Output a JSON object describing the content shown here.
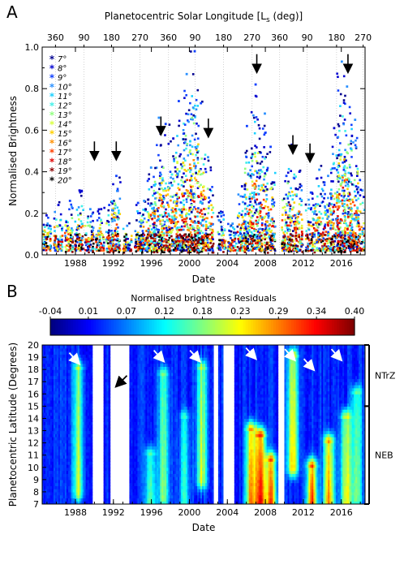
{
  "chart_data": [
    {
      "panel": "A",
      "type": "scatter",
      "xlabel": "Date",
      "ylabel": "Normalised Brightness",
      "top_axis_label": "Planetocentric Solar Longitude [L",
      "top_axis_label_sub": "s",
      "top_axis_label_end": " (deg)]",
      "xlim": [
        1984.5,
        2018.5
      ],
      "ylim": [
        0,
        1.0
      ],
      "x_ticks": [
        1988,
        1992,
        1996,
        2000,
        2004,
        2008,
        2012,
        2016
      ],
      "y_ticks": [
        0.0,
        0.2,
        0.4,
        0.6,
        0.8,
        1.0
      ],
      "top_ticks": [
        {
          "year": 1985.9,
          "label": "360"
        },
        {
          "year": 1988.9,
          "label": "90"
        },
        {
          "year": 1991.8,
          "label": "180"
        },
        {
          "year": 1994.8,
          "label": "270"
        },
        {
          "year": 1997.8,
          "label": "360"
        },
        {
          "year": 2000.6,
          "label": "90"
        },
        {
          "year": 2003.6,
          "label": "180"
        },
        {
          "year": 2006.6,
          "label": "270"
        },
        {
          "year": 2009.5,
          "label": "360"
        },
        {
          "year": 2012.4,
          "label": "90"
        },
        {
          "year": 2015.5,
          "label": "180"
        },
        {
          "year": 2018.3,
          "label": "270"
        }
      ],
      "legend": {
        "position": "top-left",
        "entries": [
          {
            "label": "7°",
            "color": "#00008f"
          },
          {
            "label": "8°",
            "color": "#0000d0"
          },
          {
            "label": "9°",
            "color": "#1040ff"
          },
          {
            "label": "10°",
            "color": "#2a90ff"
          },
          {
            "label": "11°",
            "color": "#1ad0ff"
          },
          {
            "label": "12°",
            "color": "#40f0e8"
          },
          {
            "label": "13°",
            "color": "#90ff80"
          },
          {
            "label": "14°",
            "color": "#d8ff40"
          },
          {
            "label": "15°",
            "color": "#ffd000"
          },
          {
            "label": "16°",
            "color": "#ff9000"
          },
          {
            "label": "17°",
            "color": "#ff4000"
          },
          {
            "label": "18°",
            "color": "#e00000"
          },
          {
            "label": "19°",
            "color": "#8a0000"
          },
          {
            "label": "20°",
            "color": "#000000"
          }
        ]
      },
      "event_arrows": [
        {
          "year": 1990.0,
          "brightness": 0.46
        },
        {
          "year": 1992.3,
          "brightness": 0.46
        },
        {
          "year": 1997.0,
          "brightness": 0.58
        },
        {
          "year": 2002.0,
          "brightness": 0.57
        },
        {
          "year": 2007.1,
          "brightness": 0.88
        },
        {
          "year": 2010.9,
          "brightness": 0.49
        },
        {
          "year": 2012.7,
          "brightness": 0.45
        },
        {
          "year": 2016.7,
          "brightness": 0.88
        }
      ],
      "observing_clusters": [
        {
          "year": 1985.0,
          "peak": 0.19
        },
        {
          "year": 1986.2,
          "peak": 0.24
        },
        {
          "year": 1987.3,
          "peak": 0.26
        },
        {
          "year": 1988.4,
          "peak": 0.31
        },
        {
          "year": 1989.5,
          "peak": 0.22
        },
        {
          "year": 1990.6,
          "peak": 0.22
        },
        {
          "year": 1991.7,
          "peak": 0.24
        },
        {
          "year": 1992.3,
          "peak": 0.38
        },
        {
          "year": 1993.5,
          "peak": 0.14
        },
        {
          "year": 1994.7,
          "peak": 0.25
        },
        {
          "year": 1995.3,
          "peak": 0.26
        },
        {
          "year": 1996.0,
          "peak": 0.42
        },
        {
          "year": 1996.7,
          "peak": 0.66
        },
        {
          "year": 1997.5,
          "peak": 0.63
        },
        {
          "year": 1998.3,
          "peak": 0.56
        },
        {
          "year": 1999.0,
          "peak": 0.74
        },
        {
          "year": 1999.8,
          "peak": 0.87
        },
        {
          "year": 2000.5,
          "peak": 0.98
        },
        {
          "year": 2001.3,
          "peak": 0.73
        },
        {
          "year": 2002.1,
          "peak": 0.47
        },
        {
          "year": 2003.4,
          "peak": 0.2
        },
        {
          "year": 2004.5,
          "peak": 0.15
        },
        {
          "year": 2005.5,
          "peak": 0.33
        },
        {
          "year": 2006.2,
          "peak": 0.62
        },
        {
          "year": 2007.0,
          "peak": 0.82
        },
        {
          "year": 2007.8,
          "peak": 0.68
        },
        {
          "year": 2008.6,
          "peak": 0.52
        },
        {
          "year": 2010.2,
          "peak": 0.38
        },
        {
          "year": 2010.8,
          "peak": 0.53
        },
        {
          "year": 2011.5,
          "peak": 0.4
        },
        {
          "year": 2012.7,
          "peak": 0.3
        },
        {
          "year": 2013.6,
          "peak": 0.41
        },
        {
          "year": 2014.5,
          "peak": 0.38
        },
        {
          "year": 2015.3,
          "peak": 0.61
        },
        {
          "year": 2016.0,
          "peak": 0.93
        },
        {
          "year": 2016.7,
          "peak": 0.81
        },
        {
          "year": 2017.4,
          "peak": 0.65
        },
        {
          "year": 2018.0,
          "peak": 0.36
        }
      ]
    },
    {
      "panel": "B",
      "type": "heatmap",
      "title": "Normalised brightness Residuals",
      "xlabel": "Date",
      "ylabel": "Planetocentric Latitude (Degrees)",
      "xlim": [
        1984.5,
        2018.5
      ],
      "ylim": [
        7,
        20
      ],
      "x_ticks": [
        1988,
        1992,
        1996,
        2000,
        2004,
        2008,
        2012,
        2016
      ],
      "y_ticks": [
        7,
        8,
        9,
        10,
        11,
        12,
        13,
        14,
        15,
        16,
        17,
        18,
        19,
        20
      ],
      "colorbar_ticks": [
        "-0.04",
        "0.01",
        "0.07",
        "0.12",
        "0.18",
        "0.23",
        "0.29",
        "0.34",
        "0.40"
      ],
      "colorbar_range": [
        -0.04,
        0.4
      ],
      "regions": [
        {
          "label": "NTrZ",
          "lat_range": [
            15,
            20
          ]
        },
        {
          "label": "NEB",
          "lat_range": [
            7,
            15
          ]
        }
      ],
      "data_gaps": [
        [
          1989.8,
          1990.9
        ],
        [
          1991.7,
          1993.7
        ],
        [
          2002.6,
          2003.1
        ],
        [
          2003.6,
          2004.7
        ],
        [
          2009.4,
          2010.0
        ]
      ],
      "white_arrows": [
        {
          "year": 1988.3,
          "lat": 18.5
        },
        {
          "year": 1997.2,
          "lat": 18.7
        },
        {
          "year": 2001.0,
          "lat": 18.7
        },
        {
          "year": 2006.9,
          "lat": 18.9
        },
        {
          "year": 2011.0,
          "lat": 18.8
        },
        {
          "year": 2013.0,
          "lat": 18.0
        },
        {
          "year": 2015.9,
          "lat": 18.8
        }
      ],
      "black_arrows": [
        {
          "year": 1992.4,
          "lat": 16.7
        }
      ],
      "enhancements": [
        {
          "year": 1988.3,
          "lat_lo": 8.0,
          "lat_hi": 18.0,
          "value": 0.24
        },
        {
          "year": 1995.9,
          "lat_lo": 7.0,
          "lat_hi": 11.0,
          "value": 0.2
        },
        {
          "year": 1997.3,
          "lat_lo": 7.5,
          "lat_hi": 17.5,
          "value": 0.22
        },
        {
          "year": 1999.5,
          "lat_lo": 7.0,
          "lat_hi": 14.0,
          "value": 0.16
        },
        {
          "year": 2001.3,
          "lat_lo": 9.0,
          "lat_hi": 18.0,
          "value": 0.25
        },
        {
          "year": 2006.5,
          "lat_lo": 7.0,
          "lat_hi": 13.0,
          "value": 0.34
        },
        {
          "year": 2007.5,
          "lat_lo": 7.0,
          "lat_hi": 12.5,
          "value": 0.4
        },
        {
          "year": 2008.6,
          "lat_lo": 7.0,
          "lat_hi": 10.5,
          "value": 0.36
        },
        {
          "year": 2010.9,
          "lat_lo": 10.0,
          "lat_hi": 19.0,
          "value": 0.3
        },
        {
          "year": 2012.9,
          "lat_lo": 7.0,
          "lat_hi": 10.0,
          "value": 0.38
        },
        {
          "year": 2014.7,
          "lat_lo": 7.0,
          "lat_hi": 12.0,
          "value": 0.34
        },
        {
          "year": 2016.5,
          "lat_lo": 7.0,
          "lat_hi": 14.0,
          "value": 0.28
        },
        {
          "year": 2017.6,
          "lat_lo": 7.5,
          "lat_hi": 16.0,
          "value": 0.22
        }
      ]
    }
  ],
  "labels": {
    "panel_a": "A",
    "panel_b": "B"
  }
}
